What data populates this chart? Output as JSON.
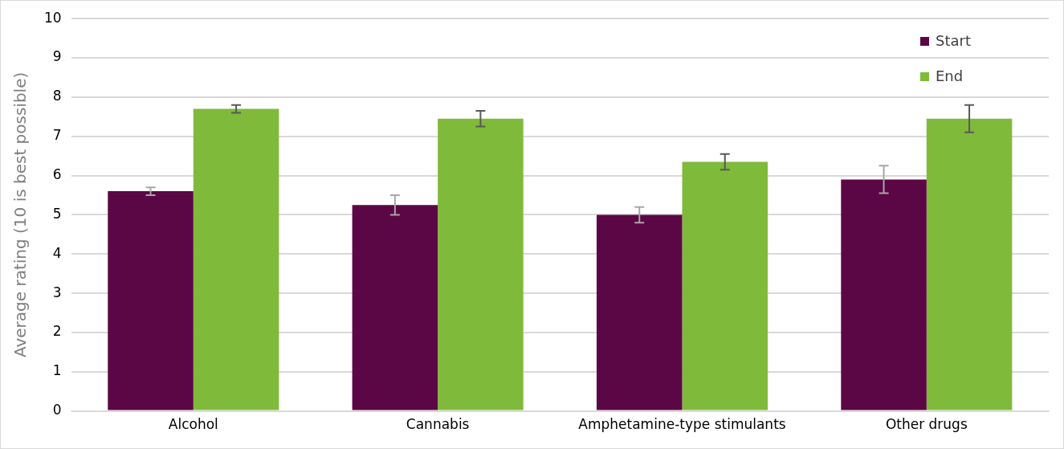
{
  "chart_data": {
    "type": "bar",
    "ylabel": "Average rating (10 is best possible)",
    "categories": [
      "Alcohol",
      "Cannabis",
      "Amphetamine-type stimulants",
      "Other drugs"
    ],
    "series": [
      {
        "name": "Start",
        "color": "#5c0745",
        "values": [
          5.6,
          5.25,
          5.0,
          5.9
        ],
        "errors": [
          0.1,
          0.25,
          0.2,
          0.35
        ]
      },
      {
        "name": "End",
        "color": "#7fba3a",
        "values": [
          7.7,
          7.45,
          6.35,
          7.45
        ],
        "errors": [
          0.1,
          0.2,
          0.2,
          0.35
        ]
      }
    ],
    "ylim": [
      0,
      10
    ],
    "yticks": [
      0,
      1,
      2,
      3,
      4,
      5,
      6,
      7,
      8,
      9,
      10
    ],
    "grid": "y",
    "legend": "top right"
  }
}
